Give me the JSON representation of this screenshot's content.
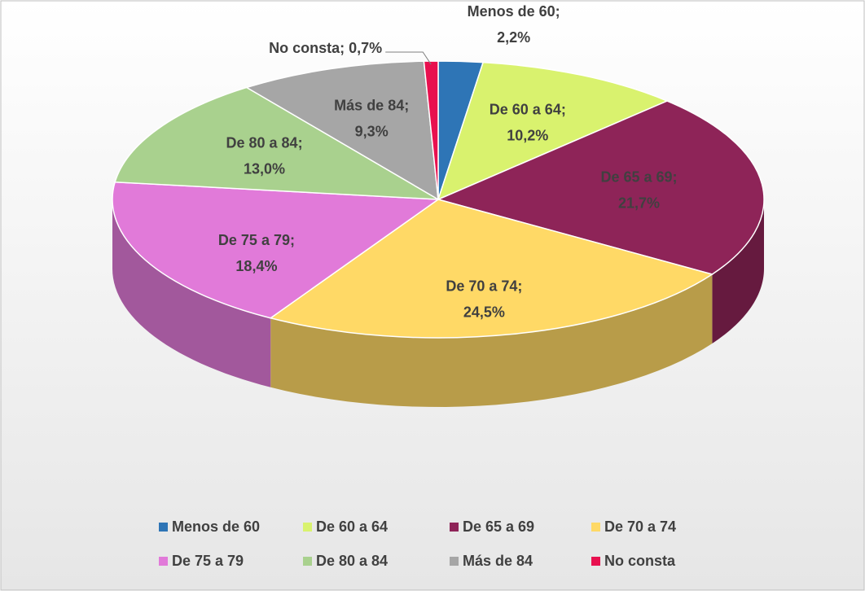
{
  "chart_data": {
    "type": "pie3d",
    "categories": [
      "Menos de 60",
      "De 60 a 64",
      "De 65 a 69",
      "De 70 a 74",
      "De 75 a 79",
      "De 80 a 84",
      "Más de 84",
      "No consta"
    ],
    "values": [
      2.2,
      10.2,
      21.7,
      24.5,
      18.4,
      13.0,
      9.3,
      0.7
    ],
    "value_labels": [
      [
        "Menos de 60;",
        "2,2%"
      ],
      [
        "De 60 a 64;",
        "10,2%"
      ],
      [
        "De 65 a 69;",
        "21,7%"
      ],
      [
        "De 70 a 74;",
        "24,5%"
      ],
      [
        "De 75 a 79;",
        "18,4%"
      ],
      [
        "De 80 a 84;",
        "13,0%"
      ],
      [
        "Más de 84;",
        "9,3%"
      ],
      [
        "No consta; 0,7%"
      ]
    ],
    "colors": [
      "#2e75b6",
      "#d9f26e",
      "#8e2458",
      "#ffd966",
      "#e17ad9",
      "#a9d18e",
      "#a6a6a6",
      "#e8104f"
    ],
    "legend": "bottom"
  }
}
